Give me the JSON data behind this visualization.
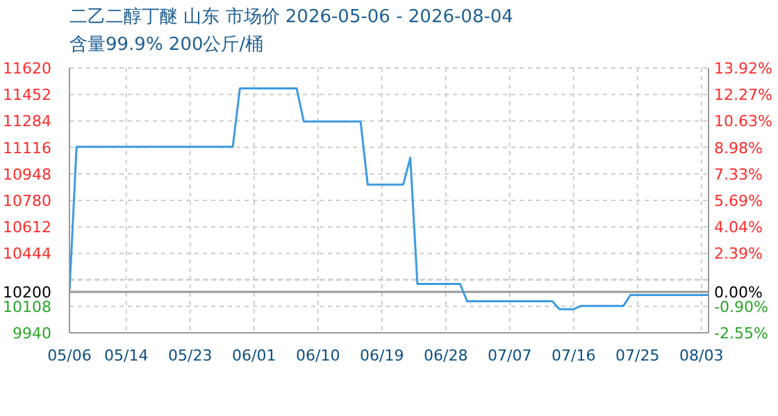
{
  "chart_data": {
    "type": "line",
    "title": "二乙二醇丁醚 山东 市场价 2026-05-06 - 2026-08-04",
    "subtitle": "含量99.9% 200公斤/桶",
    "x": [
      "2026-05-06",
      "2026-05-07",
      "2026-05-29",
      "2026-05-30",
      "2026-06-07",
      "2026-06-08",
      "2026-06-16",
      "2026-06-17",
      "2026-06-22",
      "2026-06-23",
      "2026-06-24",
      "2026-06-30",
      "2026-07-01",
      "2026-07-13",
      "2026-07-14",
      "2026-07-16",
      "2026-07-17",
      "2026-07-23",
      "2026-07-24",
      "2026-08-04"
    ],
    "series": [
      {
        "color": "#3d9be0",
        "values": [
          10200,
          11120,
          11120,
          11490,
          11490,
          11280,
          11280,
          10880,
          10880,
          11050,
          10250,
          10250,
          10140,
          10140,
          10090,
          10090,
          10110,
          10110,
          10180,
          10180
        ]
      }
    ],
    "xlim": [
      "2026-05-06",
      "2026-08-04"
    ],
    "xticks": [
      {
        "value": "2026-05-06",
        "label": "05/06"
      },
      {
        "value": "2026-05-14",
        "label": "05/14"
      },
      {
        "value": "2026-05-23",
        "label": "05/23"
      },
      {
        "value": "2026-06-01",
        "label": "06/01"
      },
      {
        "value": "2026-06-10",
        "label": "06/10"
      },
      {
        "value": "2026-06-19",
        "label": "06/19"
      },
      {
        "value": "2026-06-28",
        "label": "06/28"
      },
      {
        "value": "2026-07-07",
        "label": "07/07"
      },
      {
        "value": "2026-07-16",
        "label": "07/16"
      },
      {
        "value": "2026-07-25",
        "label": "07/25"
      },
      {
        "value": "2026-08-03",
        "label": "08/03"
      }
    ],
    "ylim": [
      9940,
      11620
    ],
    "yticks": [
      11620,
      11452,
      11284,
      11116,
      10948,
      10780,
      10612,
      10444,
      {
        "value": 10276,
        "label": null
      },
      10200,
      10108,
      9940
    ],
    "y2lim": [
      -2.55,
      13.92
    ],
    "y2ticks": [
      {
        "value": 13.92,
        "label": "13.92%"
      },
      {
        "value": 12.27,
        "label": "12.27%"
      },
      {
        "value": 10.63,
        "label": "10.63%"
      },
      {
        "value": 8.98,
        "label": "8.98%"
      },
      {
        "value": 7.33,
        "label": "7.33%"
      },
      {
        "value": 5.69,
        "label": "5.69%"
      },
      {
        "value": 4.04,
        "label": "4.04%"
      },
      {
        "value": 2.39,
        "label": "2.39%"
      },
      {
        "value": 0.75,
        "label": null
      },
      {
        "value": 0,
        "label": "0.00%"
      },
      {
        "value": -0.9,
        "label": "-0.90%"
      },
      {
        "value": -2.55,
        "label": "-2.55%"
      }
    ],
    "ref_lines": [
      {
        "axis": "y",
        "value": 10200,
        "color": "#999999"
      }
    ],
    "grid": true,
    "marker": "none",
    "line_style": "solid"
  }
}
